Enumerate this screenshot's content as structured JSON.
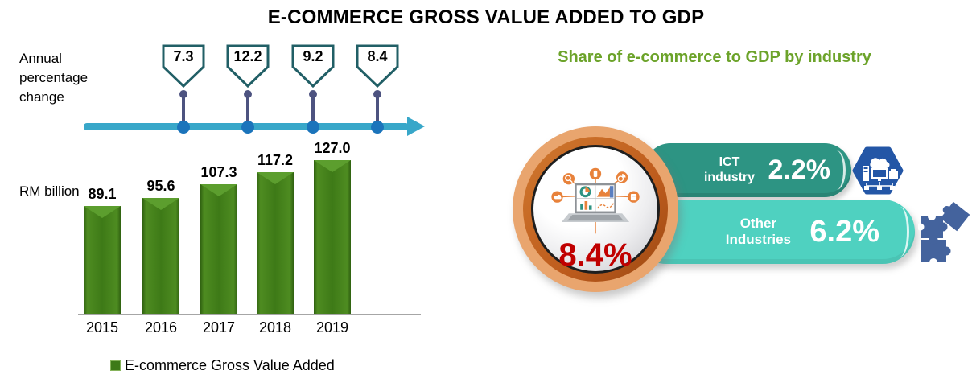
{
  "title": "E-COMMERCE GROSS VALUE ADDED TO GDP",
  "left_panel": {
    "timeline_label": "Annual percentage change",
    "unit_label": "RM billion",
    "legend_label": "E-commerce Gross Value Added",
    "pct_change_display": [
      "7.3",
      "12.2",
      "9.2",
      "8.4"
    ],
    "bar_value_display": [
      "89.1",
      "95.6",
      "107.3",
      "117.2",
      "127.0"
    ],
    "years": [
      "2015",
      "2016",
      "2017",
      "2018",
      "2019"
    ]
  },
  "right_panel": {
    "heading": "Share of e-commerce to GDP by industry",
    "total_share_display": "8.4%",
    "ict_label": "ICT industry",
    "ict_value_display": "2.2%",
    "other_label": "Other Industries",
    "other_value_display": "6.2%",
    "icons": [
      "laptop-dashboard-icon",
      "ict-network-hexagon-icon",
      "puzzle-pieces-icon"
    ]
  },
  "colors": {
    "bar_green": "#3E7A17",
    "heading_green": "#6CA32A",
    "arrow_teal": "#38A7C9",
    "dot_blue": "#1B74BB",
    "stem_slate": "#4D5380",
    "pentagon_border": "#215F66",
    "ict_ribbon": "#2D9483",
    "other_ribbon": "#4FD1C0",
    "hexagon_blue": "#2356A6",
    "puzzle_blue": "#44639D",
    "ring_light_orange": "#E9A56E",
    "ring_dark_orange": "#BE5C1D",
    "total_red": "#C00000"
  },
  "chart_data": [
    {
      "type": "bar",
      "title": "E-COMMERCE GROSS VALUE ADDED TO GDP",
      "categories": [
        "2015",
        "2016",
        "2017",
        "2018",
        "2019"
      ],
      "values": [
        89.1,
        95.6,
        107.3,
        117.2,
        127.0
      ],
      "ylabel": "RM billion",
      "ylim": [
        0,
        135
      ],
      "grid": false,
      "legend": [
        "E-commerce Gross Value Added"
      ],
      "series_secondary": {
        "name": "Annual percentage change",
        "x": [
          "2016",
          "2017",
          "2018",
          "2019"
        ],
        "values": [
          7.3,
          12.2,
          9.2,
          8.4
        ]
      }
    },
    {
      "type": "pie",
      "title": "Share of e-commerce to GDP by industry",
      "total_share_of_gdp_pct": 8.4,
      "categories": [
        "ICT industry",
        "Other Industries"
      ],
      "values": [
        2.2,
        6.2
      ]
    }
  ]
}
